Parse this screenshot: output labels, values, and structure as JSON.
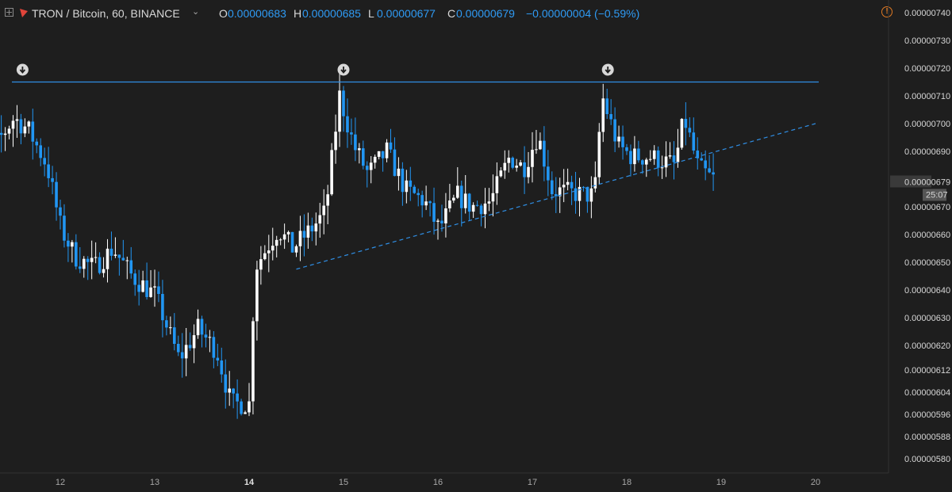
{
  "header": {
    "symbol": "TRON / Bitcoin, 60, BINANCE",
    "open_label": "O",
    "open": "0.00000683",
    "high_label": "H",
    "high": "0.00000685",
    "low_label": "L",
    "low": "0.00000677",
    "close_label": "C",
    "close": "0.00000679",
    "change": "−0.00000004 (−0.59%)",
    "warning_glyph": "!"
  },
  "chart_data": {
    "type": "candlestick",
    "y_ticks": [
      "0.00000740",
      "0.00000730",
      "0.00000720",
      "0.00000710",
      "0.00000700",
      "0.00000690",
      "0.00000679",
      "0.00000670",
      "0.00000660",
      "0.00000650",
      "0.00000640",
      "0.00000630",
      "0.00000620",
      "0.00000612",
      "0.00000604",
      "0.00000596",
      "0.00000588",
      "0.00000580"
    ],
    "x_ticks": [
      {
        "label": "12",
        "bold": false
      },
      {
        "label": "13",
        "bold": false
      },
      {
        "label": "14",
        "bold": true
      },
      {
        "label": "15",
        "bold": false
      },
      {
        "label": "16",
        "bold": false
      },
      {
        "label": "17",
        "bold": false
      },
      {
        "label": "18",
        "bold": false
      },
      {
        "label": "19",
        "bold": false
      },
      {
        "label": "20",
        "bold": false
      }
    ],
    "last_price": "0.00000679",
    "countdown": "25:07",
    "resistance_level": 7.15e-06,
    "support_trendline": {
      "from": [
        14.5,
        6.475e-06
      ],
      "to": [
        20.0,
        7e-06
      ]
    },
    "arrow_markers_at_day": [
      11.6,
      15.0,
      17.8
    ],
    "colors": {
      "up": "#ffffff",
      "down": "#2196f3",
      "line": "#2f8fe6",
      "background": "#1e1e1e"
    }
  }
}
